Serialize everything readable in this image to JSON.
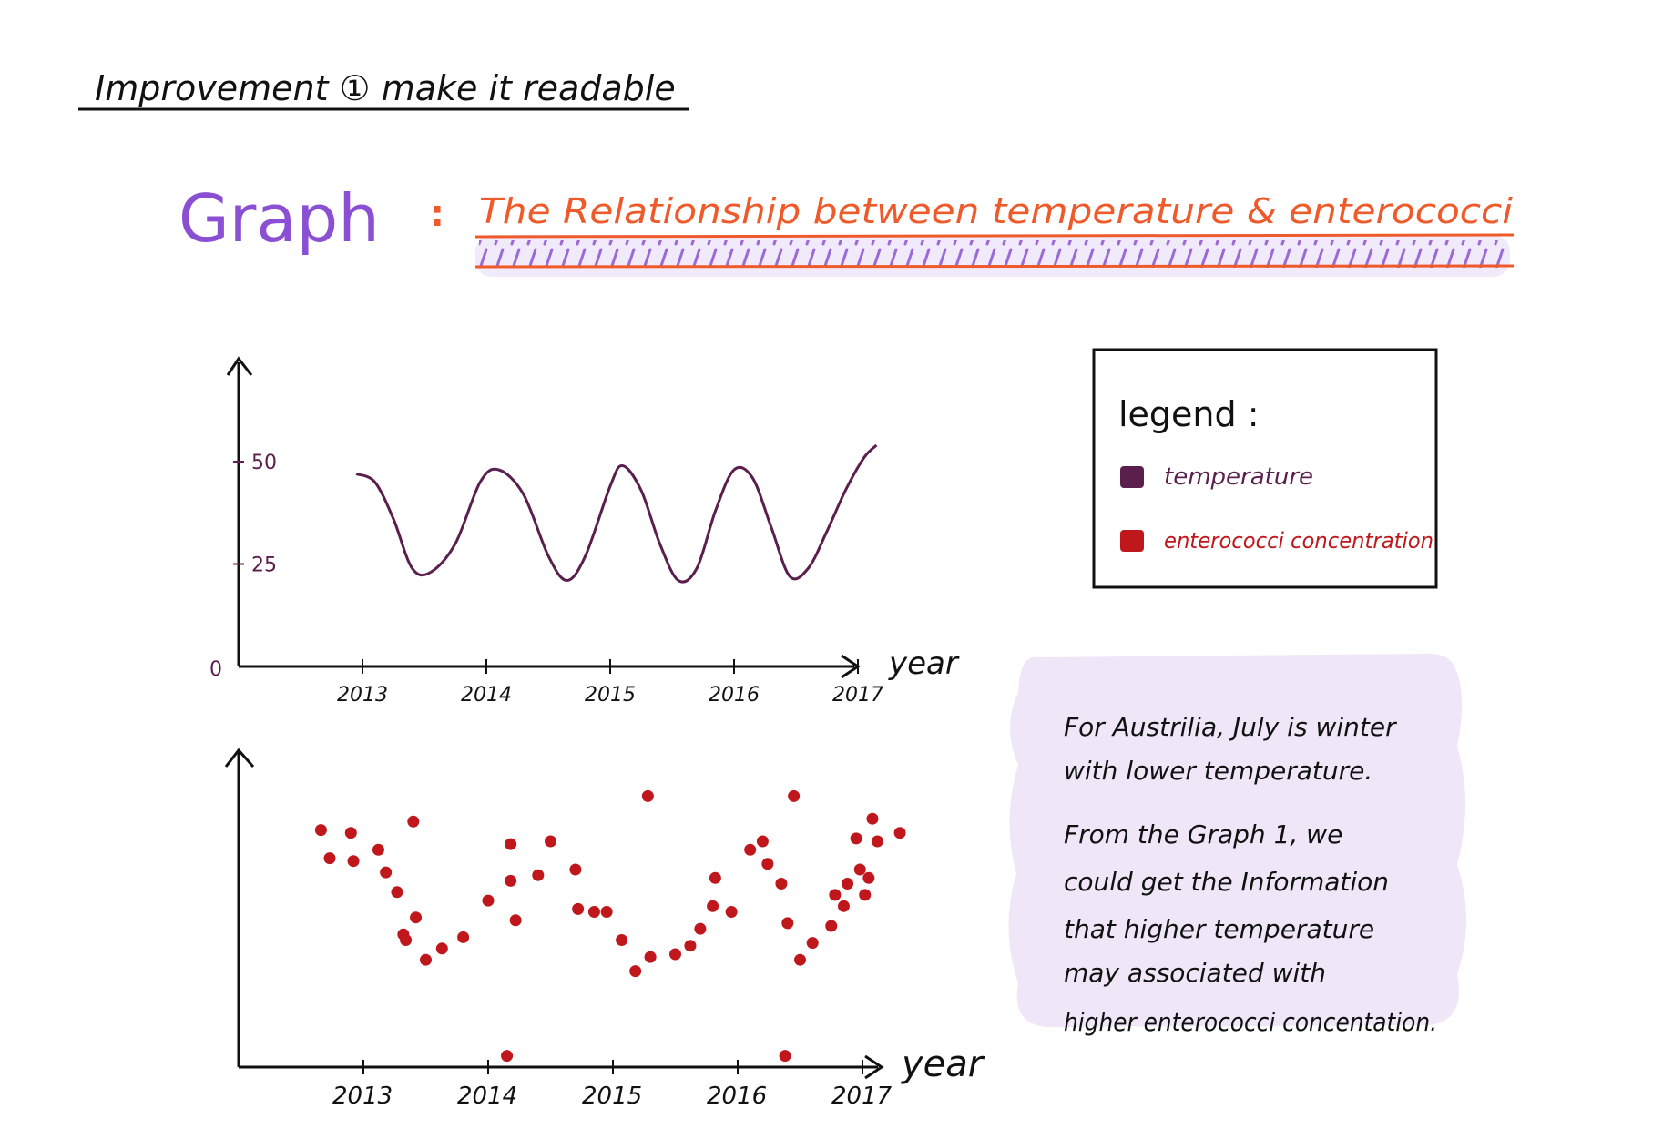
{
  "header": {
    "text": "Improvement ① make it readable"
  },
  "title": {
    "prefix": "Graph",
    "colon": ":",
    "text": "The Relationship between temperature & enterococci"
  },
  "legend": {
    "heading": "legend :",
    "items": [
      {
        "label": "temperature",
        "color": "#5b1f4e"
      },
      {
        "label": "enterococci concentration",
        "color": "#c0171c"
      }
    ]
  },
  "note": {
    "lines": [
      "For Austrilia, July is winter",
      "with lower temperature.",
      "From the Graph 1, we",
      "could get the Information",
      "that higher temperature",
      "may associated with",
      "higher enterococci concentation."
    ]
  },
  "colors": {
    "header": "#111111",
    "graph_word": "#8a4fd3",
    "title": "#ef5a2b",
    "title_hatch": "#9b6ad6",
    "temperature": "#5b1f4e",
    "enterococci": "#c0171c",
    "note_bg": "#efe7f7",
    "axis": "#111111"
  },
  "chart_data": [
    {
      "type": "line",
      "series_name": "temperature",
      "xlabel": "year",
      "ylabel": "",
      "x_ticks": [
        "2013",
        "2014",
        "2015",
        "2016",
        "2017"
      ],
      "y_ticks": [
        "0",
        "25",
        "50"
      ],
      "ylim": [
        0,
        60
      ],
      "xlim": [
        2012.0,
        2017.2
      ],
      "x": [
        2012.95,
        2013.1,
        2013.25,
        2013.4,
        2013.55,
        2013.75,
        2013.95,
        2014.1,
        2014.3,
        2014.5,
        2014.65,
        2014.8,
        2015.0,
        2015.1,
        2015.25,
        2015.4,
        2015.55,
        2015.7,
        2015.85,
        2016.0,
        2016.15,
        2016.3,
        2016.45,
        2016.6,
        2016.75,
        2016.9,
        2017.05,
        2017.15
      ],
      "y": [
        47,
        45,
        36,
        24,
        23,
        30,
        45,
        48,
        42,
        27,
        21,
        27,
        44,
        49,
        43,
        30,
        21,
        24,
        38,
        48,
        46,
        34,
        22,
        24,
        33,
        43,
        51,
        54
      ]
    },
    {
      "type": "scatter",
      "series_name": "enterococci concentration",
      "xlabel": "year",
      "ylabel": "",
      "x_ticks": [
        "2013",
        "2014",
        "2015",
        "2016",
        "2017"
      ],
      "ylim": [
        0,
        100
      ],
      "xlim": [
        2012.0,
        2017.2
      ],
      "points": [
        [
          2012.66,
          84
        ],
        [
          2012.73,
          74
        ],
        [
          2012.9,
          83
        ],
        [
          2012.92,
          73
        ],
        [
          2013.12,
          77
        ],
        [
          2013.18,
          69
        ],
        [
          2013.27,
          62
        ],
        [
          2013.32,
          47
        ],
        [
          2013.34,
          45
        ],
        [
          2013.4,
          87
        ],
        [
          2013.42,
          53
        ],
        [
          2013.5,
          38
        ],
        [
          2013.63,
          42
        ],
        [
          2013.8,
          46
        ],
        [
          2014.0,
          59
        ],
        [
          2014.18,
          79
        ],
        [
          2014.18,
          66
        ],
        [
          2014.22,
          52
        ],
        [
          2014.4,
          68
        ],
        [
          2014.5,
          80
        ],
        [
          2014.7,
          70
        ],
        [
          2014.72,
          56
        ],
        [
          2014.85,
          55
        ],
        [
          2014.95,
          55
        ],
        [
          2015.07,
          45
        ],
        [
          2015.18,
          34
        ],
        [
          2015.28,
          96
        ],
        [
          2015.3,
          39
        ],
        [
          2015.5,
          40
        ],
        [
          2015.62,
          43
        ],
        [
          2015.7,
          49
        ],
        [
          2015.8,
          57
        ],
        [
          2015.82,
          67
        ],
        [
          2015.95,
          55
        ],
        [
          2016.1,
          77
        ],
        [
          2016.2,
          80
        ],
        [
          2016.24,
          72
        ],
        [
          2016.35,
          65
        ],
        [
          2016.4,
          51
        ],
        [
          2016.45,
          96
        ],
        [
          2016.5,
          38
        ],
        [
          2016.6,
          44
        ],
        [
          2016.75,
          50
        ],
        [
          2016.78,
          61
        ],
        [
          2016.85,
          57
        ],
        [
          2016.88,
          65
        ],
        [
          2016.95,
          81
        ],
        [
          2016.98,
          70
        ],
        [
          2017.02,
          61
        ],
        [
          2017.05,
          67
        ],
        [
          2017.08,
          88
        ],
        [
          2017.12,
          80
        ],
        [
          2017.3,
          83
        ],
        [
          2014.15,
          4
        ],
        [
          2016.38,
          4
        ]
      ]
    }
  ]
}
